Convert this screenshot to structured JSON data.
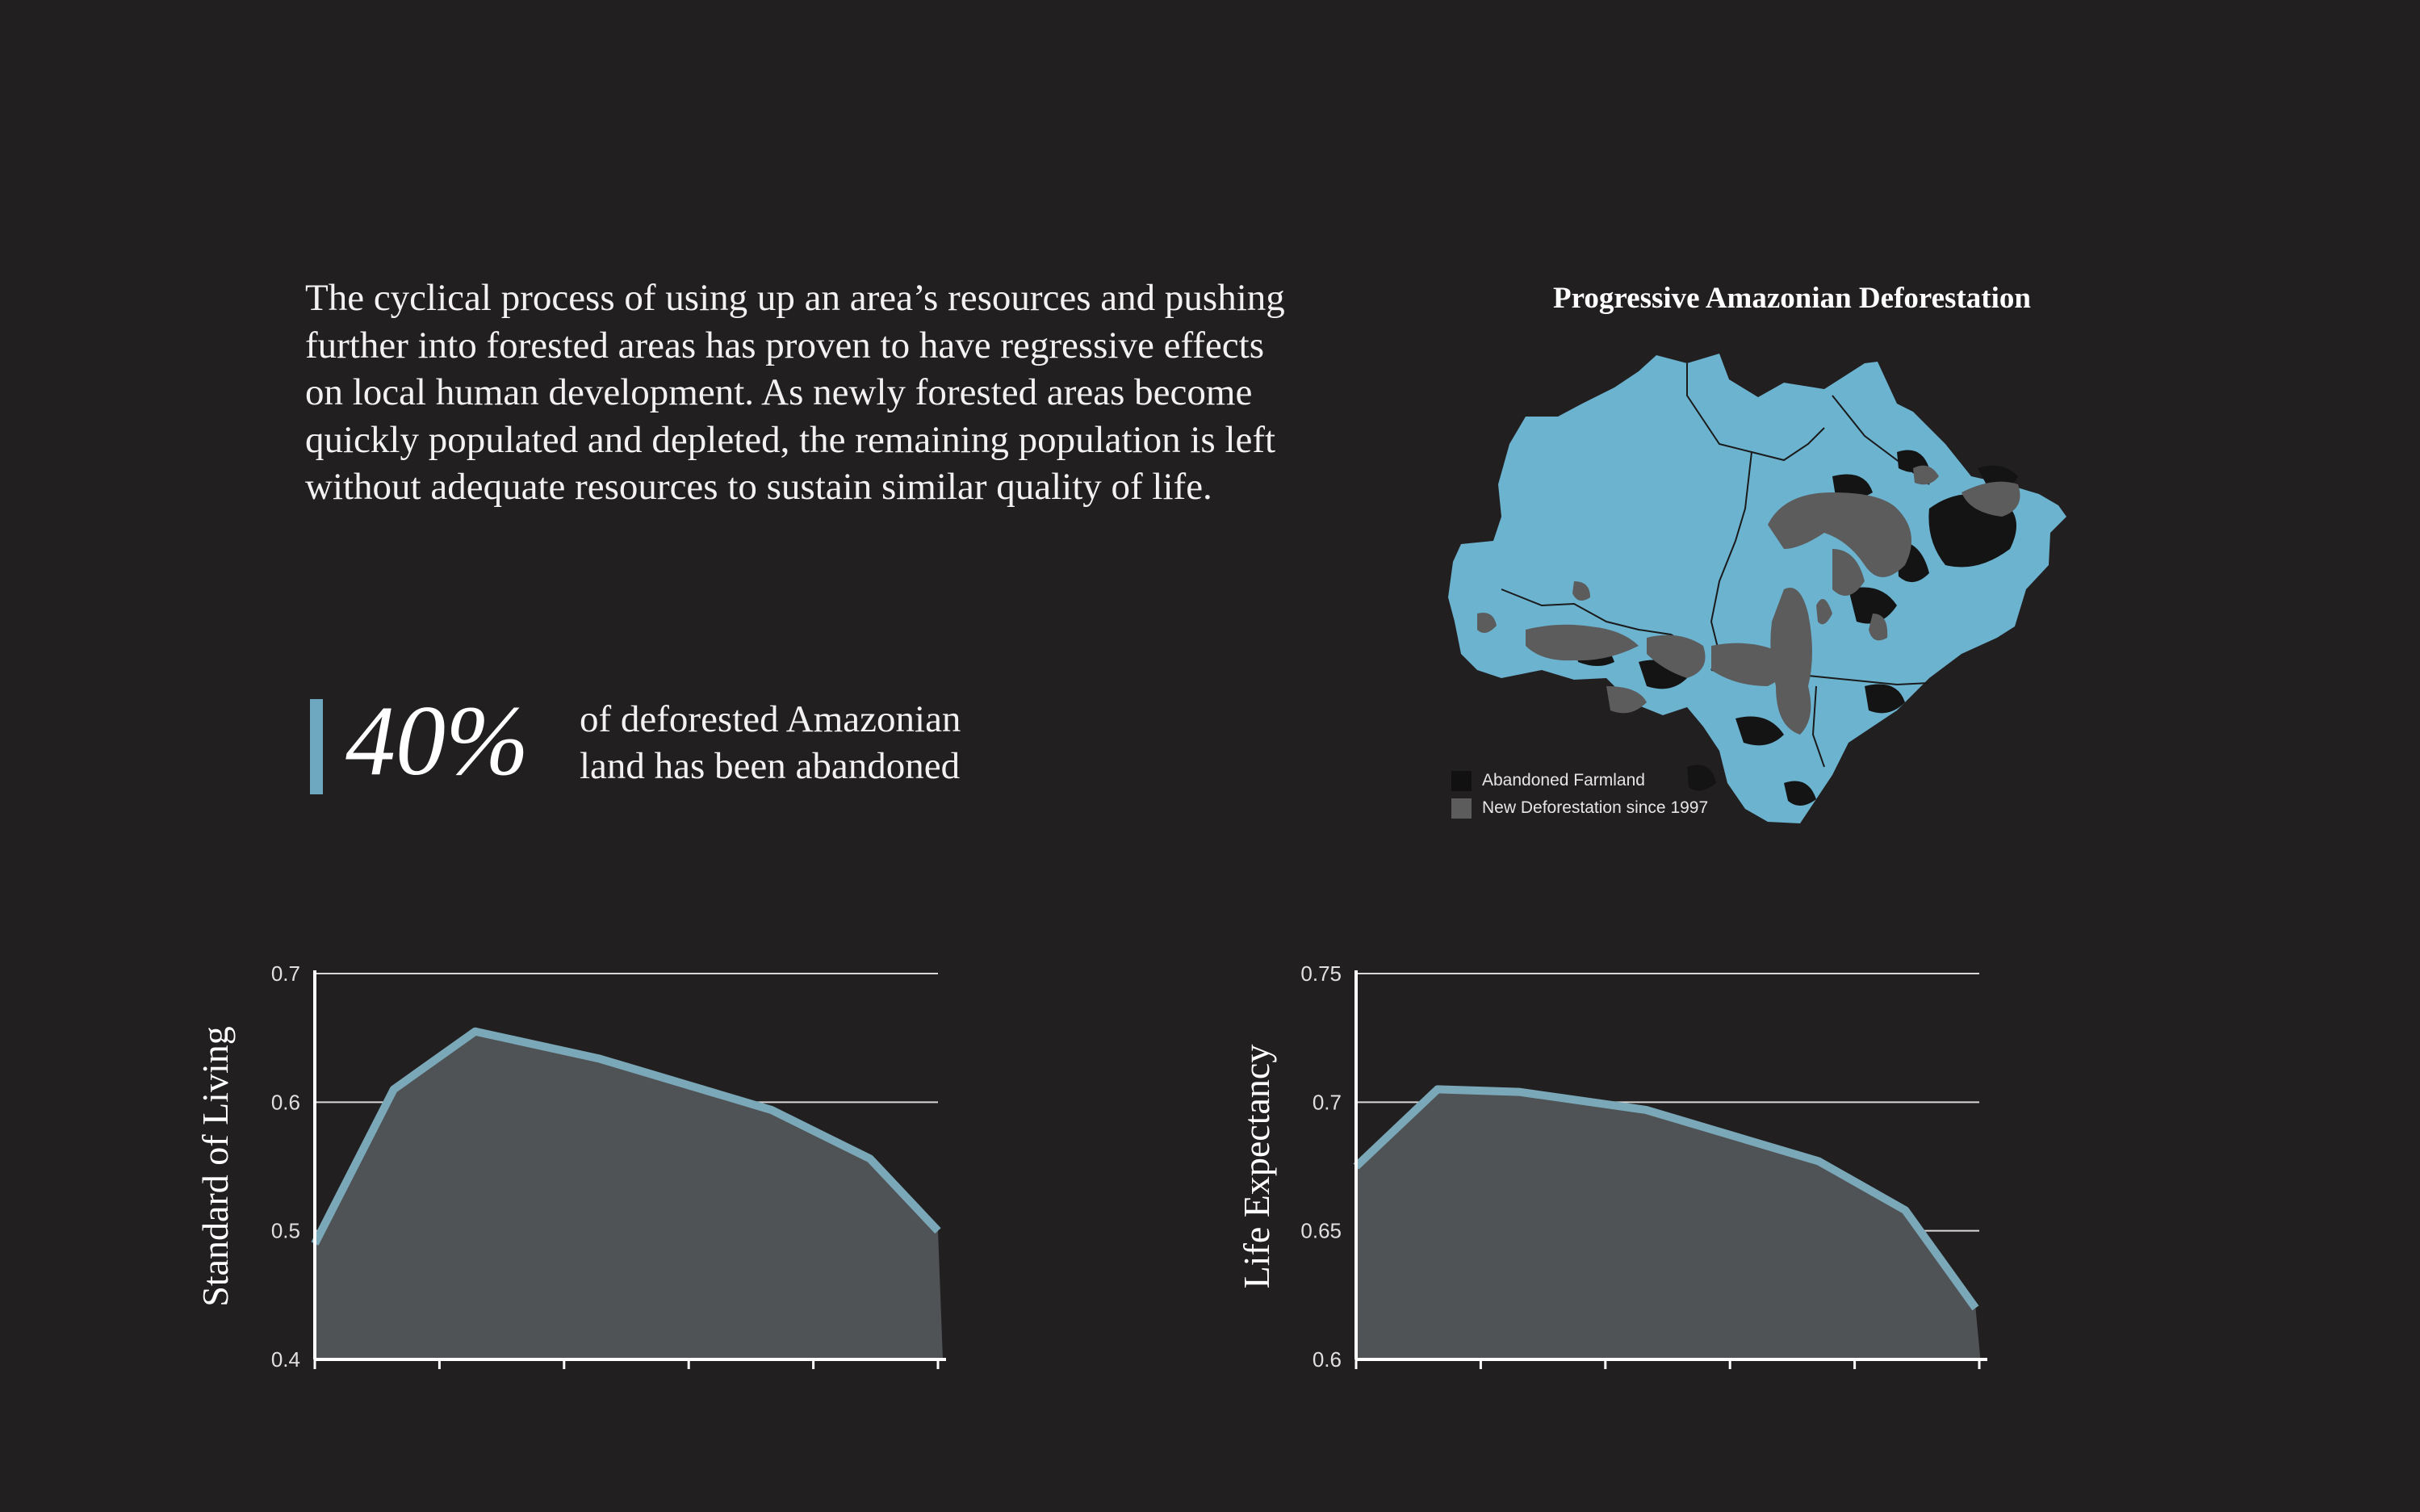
{
  "intro_text": "The cyclical process of using up an area’s resources and pushing further into forested areas has proven to have regressive effects on local human development. As newly forested areas become quickly populated and depleted, the remaining population is left without adequate resources to sustain similar quality of life.",
  "stat": {
    "value": "40%",
    "text_line1": "of deforested Amazonian",
    "text_line2": "land has been abandoned"
  },
  "map": {
    "title": "Progressive Amazonian Deforestation",
    "legend": [
      {
        "label": "Abandoned Farmland",
        "color": "#111111"
      },
      {
        "label": "New Deforestation since 1997",
        "color": "#5c5c5c"
      }
    ],
    "colors": {
      "land": "#6cb3d0",
      "abandoned": "#141414",
      "deforestation": "#5c5c5c"
    }
  },
  "colors": {
    "background": "#221f20",
    "accent": "#6da7c0",
    "line": "#7aa8b8",
    "fill": "#505356",
    "grid": "#d9d9d9"
  },
  "chart_data": [
    {
      "type": "area",
      "title": "",
      "xlabel": "",
      "ylabel": "Standard of Living",
      "ylim": [
        0.4,
        0.7
      ],
      "yticks": [
        "0.7",
        "0.6",
        "0.5",
        "0.4"
      ],
      "grid": true,
      "series": [
        {
          "x": [
            0,
            0.64,
            1.3,
            2.3,
            3.7,
            4.5,
            5.05
          ],
          "values": [
            0.49,
            0.61,
            0.655,
            0.634,
            0.594,
            0.556,
            0.5
          ]
        }
      ]
    },
    {
      "type": "area",
      "title": "",
      "xlabel": "",
      "ylabel": "Life Expectancy",
      "ylim": [
        0.6,
        0.75
      ],
      "yticks": [
        "0.75",
        "0.7",
        "0.65",
        "0.6"
      ],
      "grid": true,
      "series": [
        {
          "x": [
            0,
            0.66,
            1.32,
            2.35,
            3.75,
            4.45,
            5.02
          ],
          "values": [
            0.675,
            0.705,
            0.704,
            0.697,
            0.677,
            0.658,
            0.62
          ]
        }
      ]
    }
  ]
}
